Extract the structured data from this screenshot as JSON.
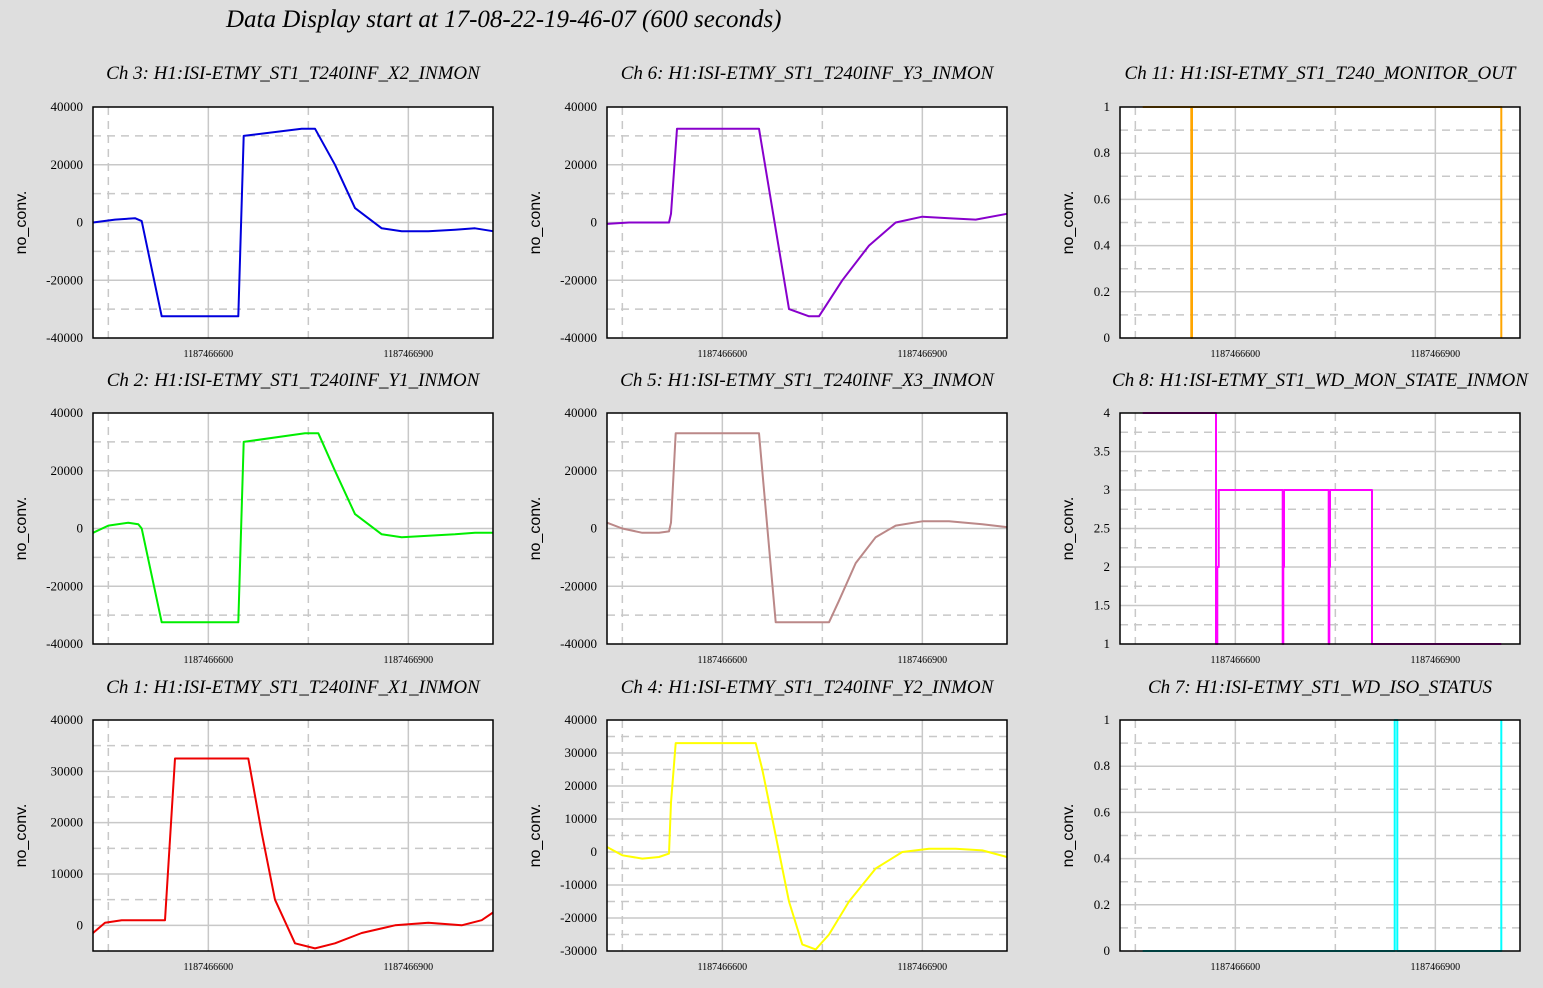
{
  "window": {
    "title": "Data Display start at 17-08-22-19-46-07 (600 seconds)"
  },
  "colors": {
    "background": "#dedede",
    "plot_background": "#ffffff",
    "grid": "#c8c8c8"
  },
  "chart_data": [
    {
      "type": "line",
      "title": "Ch 3: H1:ISI-ETMY_ST1_T240INF_X2_INMON",
      "ylabel": "no_conv.",
      "xlabel": "",
      "ylim": [
        -40000,
        40000
      ],
      "yticks": [
        -40000,
        -20000,
        0,
        20000,
        40000
      ],
      "ytick_labels": [
        "-40000",
        "-20000",
        "0",
        "20000",
        "40000"
      ],
      "xlim": [
        1187466427,
        1187467027
      ],
      "xticks": [
        1187466600,
        1187466900
      ],
      "xtick_labels": [
        "1187466600",
        "1187466900"
      ],
      "grid": true,
      "series": [
        {
          "color": "#0000dd",
          "x": [
            1187466427,
            1187466460,
            1187466490,
            1187466500,
            1187466530,
            1187466530,
            1187466605,
            1187466607,
            1187466645,
            1187466653,
            1187466740,
            1187466760,
            1187466790,
            1187466820,
            1187466860,
            1187466890,
            1187466930,
            1187466970,
            1187467000,
            1187467027
          ],
          "y": [
            0,
            1000,
            1500,
            500,
            -32500,
            -32500,
            -32500,
            -32500,
            -32500,
            30000,
            32500,
            32500,
            20000,
            5000,
            -2000,
            -3000,
            -3000,
            -2500,
            -2000,
            -3000
          ]
        }
      ]
    },
    {
      "type": "line",
      "title": "Ch 6: H1:ISI-ETMY_ST1_T240INF_Y3_INMON",
      "ylabel": "no_conv.",
      "xlabel": "",
      "ylim": [
        -40000,
        40000
      ],
      "yticks": [
        -40000,
        -20000,
        0,
        20000,
        40000
      ],
      "ytick_labels": [
        "-40000",
        "-20000",
        "0",
        "20000",
        "40000"
      ],
      "xlim": [
        1187466427,
        1187467027
      ],
      "xticks": [
        1187466600,
        1187466900
      ],
      "xtick_labels": [
        "1187466600",
        "1187466900"
      ],
      "grid": true,
      "series": [
        {
          "color": "#8800cc",
          "x": [
            1187466427,
            1187466460,
            1187466490,
            1187466520,
            1187466523,
            1187466532,
            1187466655,
            1187466700,
            1187466730,
            1187466745,
            1187466780,
            1187466820,
            1187466860,
            1187466900,
            1187466940,
            1187466980,
            1187467027
          ],
          "y": [
            -500,
            0,
            0,
            0,
            3000,
            32500,
            32500,
            -30000,
            -32500,
            -32500,
            -20000,
            -8000,
            0,
            2000,
            1500,
            1000,
            3000
          ]
        }
      ]
    },
    {
      "type": "line",
      "title": "Ch 11: H1:ISI-ETMY_ST1_T240_MONITOR_OUT",
      "ylabel": "no_conv.",
      "xlabel": "",
      "ylim": [
        0,
        1
      ],
      "yticks": [
        0,
        0.2,
        0.4,
        0.6,
        0.8,
        1
      ],
      "ytick_labels": [
        "0",
        "0.2",
        "0.4",
        "0.6",
        "0.8",
        "1"
      ],
      "xlim": [
        1187466427,
        1187467027
      ],
      "xticks": [
        1187466600,
        1187466900
      ],
      "xtick_labels": [
        "1187466600",
        "1187466900"
      ],
      "grid": true,
      "series": [
        {
          "color": "#ffa500",
          "x": [
            1187466461,
            1187466534,
            1187466534,
            1187466535,
            1187466535,
            1187466999,
            1187466999
          ],
          "y": [
            1,
            1,
            0,
            0,
            1,
            1,
            0
          ]
        }
      ]
    },
    {
      "type": "line",
      "title": "Ch 2: H1:ISI-ETMY_ST1_T240INF_Y1_INMON",
      "ylabel": "no_conv.",
      "xlabel": "",
      "ylim": [
        -40000,
        40000
      ],
      "yticks": [
        -40000,
        -20000,
        0,
        20000,
        40000
      ],
      "ytick_labels": [
        "-40000",
        "-20000",
        "0",
        "20000",
        "40000"
      ],
      "xlim": [
        1187466427,
        1187467027
      ],
      "xticks": [
        1187466600,
        1187466900
      ],
      "xtick_labels": [
        "1187466600",
        "1187466900"
      ],
      "grid": true,
      "series": [
        {
          "color": "#00ee00",
          "x": [
            1187466427,
            1187466450,
            1187466480,
            1187466495,
            1187466500,
            1187466530,
            1187466605,
            1187466607,
            1187466645,
            1187466653,
            1187466745,
            1187466765,
            1187466790,
            1187466820,
            1187466860,
            1187466890,
            1187466930,
            1187466970,
            1187467000,
            1187467027
          ],
          "y": [
            -1500,
            1000,
            2000,
            1500,
            0,
            -32500,
            -32500,
            -32500,
            -32500,
            30000,
            33000,
            33000,
            20000,
            5000,
            -2000,
            -3000,
            -2500,
            -2000,
            -1500,
            -1500
          ]
        }
      ]
    },
    {
      "type": "line",
      "title": "Ch 5: H1:ISI-ETMY_ST1_T240INF_X3_INMON",
      "ylabel": "no_conv.",
      "xlabel": "",
      "ylim": [
        -40000,
        40000
      ],
      "yticks": [
        -40000,
        -20000,
        0,
        20000,
        40000
      ],
      "ytick_labels": [
        "-40000",
        "-20000",
        "0",
        "20000",
        "40000"
      ],
      "xlim": [
        1187466427,
        1187467027
      ],
      "xticks": [
        1187466600,
        1187466900
      ],
      "xtick_labels": [
        "1187466600",
        "1187466900"
      ],
      "grid": true,
      "series": [
        {
          "color": "#bb8888",
          "x": [
            1187466427,
            1187466450,
            1187466480,
            1187466505,
            1187466520,
            1187466523,
            1187466530,
            1187466655,
            1187466660,
            1187466680,
            1187466760,
            1187466775,
            1187466800,
            1187466830,
            1187466860,
            1187466900,
            1187466940,
            1187466990,
            1187467027
          ],
          "y": [
            2000,
            0,
            -1500,
            -1500,
            -1000,
            2000,
            33000,
            33000,
            20000,
            -32500,
            -32500,
            -25000,
            -12000,
            -3000,
            1000,
            2500,
            2500,
            1500,
            500
          ]
        }
      ]
    },
    {
      "type": "line",
      "title": "Ch 8: H1:ISI-ETMY_ST1_WD_MON_STATE_INMON",
      "ylabel": "no_conv.",
      "xlabel": "",
      "ylim": [
        1,
        4
      ],
      "yticks": [
        1,
        1.5,
        2,
        2.5,
        3,
        3.5,
        4
      ],
      "ytick_labels": [
        "1",
        "1.5",
        "2",
        "2.5",
        "3",
        "3.5",
        "4"
      ],
      "xlim": [
        1187466427,
        1187467027
      ],
      "xticks": [
        1187466600,
        1187466900
      ],
      "xtick_labels": [
        "1187466600",
        "1187466900"
      ],
      "grid": true,
      "series": [
        {
          "color": "#ff00ff",
          "x": [
            1187466461,
            1187466571,
            1187466571,
            1187466573,
            1187466573,
            1187466575,
            1187466575,
            1187466671,
            1187466671,
            1187466672,
            1187466672,
            1187466673,
            1187466673,
            1187466740,
            1187466740,
            1187466741,
            1187466741,
            1187466742,
            1187466742,
            1187466805,
            1187466805,
            1187466999
          ],
          "y": [
            4,
            4,
            1,
            1,
            2,
            2,
            3,
            3,
            1,
            1,
            2,
            2,
            3,
            3,
            1,
            1,
            2,
            2,
            3,
            3,
            1,
            1
          ]
        }
      ]
    },
    {
      "type": "line",
      "title": "Ch 1: H1:ISI-ETMY_ST1_T240INF_X1_INMON",
      "ylabel": "no_conv.",
      "xlabel": "",
      "ylim": [
        -5000,
        40000
      ],
      "yticks": [
        0,
        10000,
        20000,
        30000,
        40000
      ],
      "ytick_labels": [
        "0",
        "10000",
        "20000",
        "30000",
        "40000"
      ],
      "xlim": [
        1187466427,
        1187467027
      ],
      "xticks": [
        1187466600,
        1187466900
      ],
      "xtick_labels": [
        "1187466600",
        "1187466900"
      ],
      "grid": true,
      "series": [
        {
          "color": "#ee0000",
          "x": [
            1187466427,
            1187466445,
            1187466470,
            1187466500,
            1187466535,
            1187466550,
            1187466660,
            1187466680,
            1187466700,
            1187466730,
            1187466760,
            1187466790,
            1187466830,
            1187466880,
            1187466930,
            1187466980,
            1187467010,
            1187467027
          ],
          "y": [
            -1500,
            500,
            1000,
            1000,
            1000,
            32500,
            32500,
            18000,
            5000,
            -3500,
            -4500,
            -3500,
            -1500,
            0,
            500,
            0,
            1000,
            2500
          ]
        }
      ]
    },
    {
      "type": "line",
      "title": "Ch 4: H1:ISI-ETMY_ST1_T240INF_Y2_INMON",
      "ylabel": "no_conv.",
      "xlabel": "",
      "ylim": [
        -30000,
        40000
      ],
      "yticks": [
        -30000,
        -20000,
        -10000,
        0,
        10000,
        20000,
        30000,
        40000
      ],
      "ytick_labels": [
        "-30000",
        "-20000",
        "-10000",
        "0",
        "10000",
        "20000",
        "30000",
        "40000"
      ],
      "xlim": [
        1187466427,
        1187467027
      ],
      "xticks": [
        1187466600,
        1187466900
      ],
      "xtick_labels": [
        "1187466600",
        "1187466900"
      ],
      "grid": true,
      "series": [
        {
          "color": "#ffff00",
          "x": [
            1187466427,
            1187466450,
            1187466480,
            1187466505,
            1187466520,
            1187466523,
            1187466530,
            1187466650,
            1187466660,
            1187466680,
            1187466700,
            1187466720,
            1187466740,
            1187466760,
            1187466790,
            1187466830,
            1187466870,
            1187466910,
            1187466950,
            1187466990,
            1187467027
          ],
          "y": [
            1500,
            -1000,
            -2000,
            -1500,
            -500,
            15000,
            33000,
            33000,
            25000,
            5000,
            -15000,
            -28000,
            -29500,
            -25000,
            -15000,
            -5000,
            0,
            1000,
            1000,
            500,
            -1500
          ]
        }
      ]
    },
    {
      "type": "line",
      "title": "Ch 7: H1:ISI-ETMY_ST1_WD_ISO_STATUS",
      "ylabel": "no_conv.",
      "xlabel": "",
      "ylim": [
        0,
        1
      ],
      "yticks": [
        0,
        0.2,
        0.4,
        0.6,
        0.8,
        1
      ],
      "ytick_labels": [
        "0",
        "0.2",
        "0.4",
        "0.6",
        "0.8",
        "1"
      ],
      "xlim": [
        1187466427,
        1187467027
      ],
      "xticks": [
        1187466600,
        1187466900
      ],
      "xtick_labels": [
        "1187466600",
        "1187466900"
      ],
      "grid": true,
      "series": [
        {
          "color": "#00ffff",
          "x": [
            1187466461,
            1187466839,
            1187466839,
            1187466843,
            1187466843,
            1187466999,
            1187466999
          ],
          "y": [
            0,
            0,
            1,
            1,
            0,
            0,
            1
          ]
        }
      ]
    }
  ]
}
